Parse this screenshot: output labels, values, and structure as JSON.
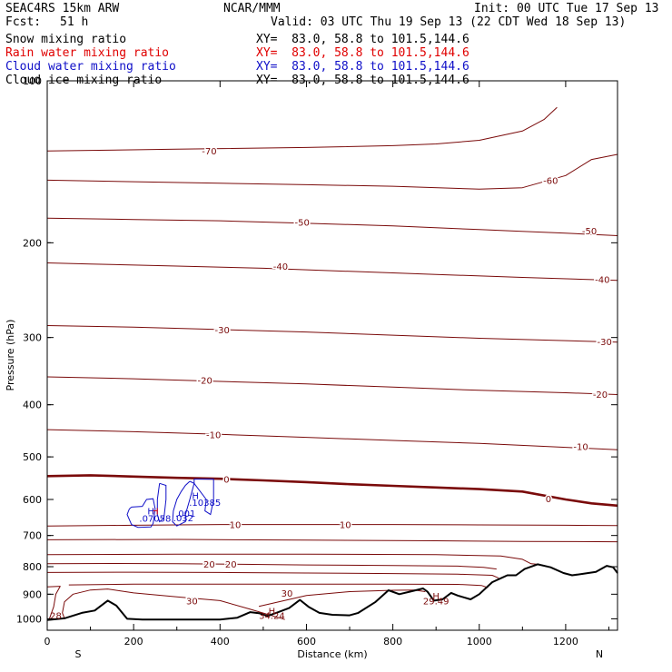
{
  "header": {
    "model": "SEAC4RS 15km ARW",
    "org": "NCAR/MMM",
    "init": "Init: 00 UTC Tue 17 Sep 13",
    "fcst_label": "Fcst:",
    "fcst_value": "51 h",
    "valid": "Valid: 03 UTC Thu 19 Sep 13 (22 CDT Wed 18 Sep 13)"
  },
  "fields": [
    {
      "name": "Snow mixing ratio",
      "xy": "XY=  83.0, 58.8 to 101.5,144.6",
      "color": "#000000"
    },
    {
      "name": "Rain water mixing ratio",
      "xy": "XY=  83.0, 58.8 to 101.5,144.6",
      "color": "#e00000"
    },
    {
      "name": "Cloud water mixing ratio",
      "xy": "XY=  83.0, 58.8 to 101.5,144.6",
      "color": "#1010c8"
    },
    {
      "name": "Cloud ice mixing ratio",
      "xy": "XY=  83.0, 58.8 to 101.5,144.6",
      "color": "#000000"
    }
  ],
  "chart_data": {
    "type": "line",
    "subtype": "vertical cross-section contour plot",
    "xlabel": "Distance (km)",
    "ylabel": "Pressure (hPa)",
    "xlim": [
      0,
      1320
    ],
    "ylim": [
      1050,
      100
    ],
    "y_scale": "log",
    "x_ticks": [
      0,
      200,
      400,
      600,
      800,
      1000,
      1200
    ],
    "y_ticks": [
      100,
      200,
      300,
      400,
      500,
      600,
      700,
      800,
      900,
      1000
    ],
    "x_tick_labels": [
      "0",
      "200",
      "400",
      "600",
      "800",
      "1000",
      "1200"
    ],
    "y_tick_labels": [
      "100",
      "200",
      "300",
      "400",
      "500",
      "600",
      "700",
      "800",
      "900",
      "1000"
    ],
    "end_labels": {
      "left": "S",
      "right": "N"
    },
    "colors": {
      "isotherm": "#7a0a0a",
      "terrain": "#000000",
      "cloud": "#1010c8",
      "extremum": "#7a0a0a"
    },
    "terrain": [
      [
        0,
        1005
      ],
      [
        40,
        998
      ],
      [
        80,
        975
      ],
      [
        110,
        965
      ],
      [
        140,
        925
      ],
      [
        160,
        945
      ],
      [
        185,
        1000
      ],
      [
        220,
        1003
      ],
      [
        300,
        1003
      ],
      [
        400,
        1003
      ],
      [
        440,
        995
      ],
      [
        470,
        972
      ],
      [
        490,
        976
      ],
      [
        510,
        988
      ],
      [
        535,
        972
      ],
      [
        560,
        955
      ],
      [
        585,
        922
      ],
      [
        605,
        950
      ],
      [
        630,
        975
      ],
      [
        660,
        983
      ],
      [
        700,
        985
      ],
      [
        720,
        975
      ],
      [
        760,
        930
      ],
      [
        790,
        885
      ],
      [
        815,
        900
      ],
      [
        840,
        890
      ],
      [
        870,
        878
      ],
      [
        880,
        890
      ],
      [
        895,
        925
      ],
      [
        915,
        920
      ],
      [
        935,
        895
      ],
      [
        950,
        905
      ],
      [
        980,
        920
      ],
      [
        1000,
        900
      ],
      [
        1030,
        855
      ],
      [
        1065,
        830
      ],
      [
        1085,
        830
      ],
      [
        1105,
        808
      ],
      [
        1135,
        792
      ],
      [
        1165,
        802
      ],
      [
        1195,
        822
      ],
      [
        1215,
        830
      ],
      [
        1240,
        825
      ],
      [
        1270,
        818
      ],
      [
        1295,
        797
      ],
      [
        1310,
        802
      ],
      [
        1320,
        822
      ]
    ],
    "series": [
      {
        "label": "-70",
        "values": [
          [
            0,
            135
          ],
          [
            300,
            134
          ],
          [
            600,
            133
          ],
          [
            800,
            132
          ],
          [
            900,
            131
          ],
          [
            1000,
            129
          ],
          [
            1100,
            124
          ],
          [
            1150,
            118
          ],
          [
            1180,
            112
          ]
        ]
      },
      {
        "label": "-60",
        "values": [
          [
            0,
            153
          ],
          [
            200,
            154
          ],
          [
            400,
            155
          ],
          [
            600,
            156
          ],
          [
            800,
            157
          ],
          [
            1000,
            159
          ],
          [
            1100,
            158
          ],
          [
            1200,
            150
          ],
          [
            1260,
            140
          ],
          [
            1320,
            137
          ]
        ]
      },
      {
        "label": "-50",
        "values": [
          [
            0,
            180
          ],
          [
            200,
            181
          ],
          [
            400,
            182
          ],
          [
            600,
            184
          ],
          [
            800,
            186
          ],
          [
            1000,
            189
          ],
          [
            1200,
            192
          ],
          [
            1320,
            194
          ]
        ]
      },
      {
        "label": "-40",
        "values": [
          [
            0,
            218
          ],
          [
            100,
            219
          ],
          [
            300,
            221
          ],
          [
            500,
            223
          ],
          [
            700,
            226
          ],
          [
            900,
            229
          ],
          [
            1100,
            232
          ],
          [
            1320,
            235
          ]
        ]
      },
      {
        "label": "-30",
        "values": [
          [
            0,
            285
          ],
          [
            200,
            287
          ],
          [
            400,
            290
          ],
          [
            600,
            293
          ],
          [
            800,
            297
          ],
          [
            1000,
            301
          ],
          [
            1200,
            304
          ],
          [
            1320,
            306
          ]
        ]
      },
      {
        "label": "-20",
        "values": [
          [
            0,
            355
          ],
          [
            200,
            358
          ],
          [
            400,
            362
          ],
          [
            600,
            366
          ],
          [
            800,
            371
          ],
          [
            1000,
            376
          ],
          [
            1200,
            380
          ],
          [
            1320,
            383
          ]
        ]
      },
      {
        "label": "-10",
        "values": [
          [
            0,
            445
          ],
          [
            200,
            449
          ],
          [
            400,
            454
          ],
          [
            600,
            460
          ],
          [
            800,
            466
          ],
          [
            1000,
            472
          ],
          [
            1200,
            480
          ],
          [
            1320,
            485
          ]
        ]
      },
      {
        "label": "0",
        "values": [
          [
            0,
            543
          ],
          [
            100,
            541
          ],
          [
            200,
            544
          ],
          [
            300,
            547
          ],
          [
            400,
            549
          ],
          [
            500,
            553
          ],
          [
            600,
            557
          ],
          [
            700,
            562
          ],
          [
            800,
            566
          ],
          [
            900,
            570
          ],
          [
            1000,
            574
          ],
          [
            1100,
            580
          ],
          [
            1200,
            600
          ],
          [
            1260,
            610
          ],
          [
            1320,
            616
          ]
        ]
      },
      {
        "label": "10",
        "values": [
          [
            0,
            672
          ],
          [
            200,
            670
          ],
          [
            400,
            668
          ],
          [
            600,
            668
          ],
          [
            800,
            668
          ],
          [
            1000,
            669
          ],
          [
            1200,
            670
          ],
          [
            1320,
            671
          ]
        ]
      },
      {
        "label": "",
        "values": [
          [
            0,
            713
          ],
          [
            300,
            712
          ],
          [
            600,
            714
          ],
          [
            900,
            716
          ],
          [
            1100,
            718
          ],
          [
            1320,
            719
          ]
        ]
      },
      {
        "label": "",
        "values": [
          [
            0,
            760
          ],
          [
            300,
            758
          ],
          [
            600,
            758
          ],
          [
            900,
            760
          ],
          [
            1050,
            764
          ],
          [
            1100,
            775
          ],
          [
            1120,
            790
          ],
          [
            1135,
            792
          ]
        ]
      },
      {
        "label": "20",
        "values": [
          [
            0,
            790
          ],
          [
            150,
            789
          ],
          [
            300,
            790
          ],
          [
            450,
            792
          ],
          [
            600,
            794
          ],
          [
            800,
            796
          ],
          [
            950,
            798
          ],
          [
            1010,
            802
          ],
          [
            1040,
            808
          ]
        ]
      },
      {
        "label": "",
        "values": [
          [
            0,
            820
          ],
          [
            200,
            819
          ],
          [
            400,
            820
          ],
          [
            600,
            822
          ],
          [
            800,
            824
          ],
          [
            950,
            826
          ],
          [
            1030,
            830
          ],
          [
            1045,
            840
          ]
        ]
      },
      {
        "label": "",
        "values": [
          [
            50,
            865
          ],
          [
            200,
            862
          ],
          [
            400,
            862
          ],
          [
            600,
            862
          ],
          [
            800,
            862
          ],
          [
            950,
            863
          ],
          [
            1005,
            867
          ],
          [
            1020,
            875
          ]
        ]
      },
      {
        "label": "30",
        "values": [
          [
            550,
            1003
          ],
          [
            470,
            960
          ],
          [
            400,
            925
          ],
          [
            300,
            910
          ],
          [
            200,
            895
          ],
          [
            140,
            880
          ],
          [
            100,
            884
          ],
          [
            60,
            900
          ],
          [
            40,
            930
          ],
          [
            35,
            975
          ],
          [
            40,
            998
          ]
        ]
      },
      {
        "label": "30",
        "values": [
          [
            490,
            948
          ],
          [
            600,
            905
          ],
          [
            700,
            890
          ],
          [
            800,
            885
          ],
          [
            850,
            884
          ],
          [
            875,
            890
          ]
        ]
      },
      {
        "label": "",
        "values": [
          [
            0,
            872
          ],
          [
            30,
            870
          ],
          [
            20,
            900
          ],
          [
            15,
            950
          ],
          [
            5,
            1000
          ]
        ]
      }
    ],
    "cloud_regions": [
      {
        "type": "cloud water contour",
        "label": ".001",
        "values": [
          [
            195,
            620
          ],
          [
            220,
            618
          ],
          [
            230,
            600
          ],
          [
            245,
            598
          ],
          [
            250,
            625
          ],
          [
            245,
            665
          ],
          [
            240,
            675
          ],
          [
            210,
            676
          ],
          [
            195,
            668
          ],
          [
            185,
            640
          ],
          [
            190,
            625
          ],
          [
            195,
            620
          ]
        ]
      },
      {
        "type": "cloud water contour",
        "label": "",
        "values": [
          [
            260,
            560
          ],
          [
            275,
            565
          ],
          [
            275,
            600
          ],
          [
            270,
            650
          ],
          [
            260,
            660
          ],
          [
            255,
            640
          ],
          [
            255,
            600
          ],
          [
            260,
            560
          ]
        ]
      },
      {
        "type": "cloud water contour",
        "label": "",
        "values": [
          [
            330,
            555
          ],
          [
            340,
            560
          ],
          [
            330,
            600
          ],
          [
            320,
            640
          ],
          [
            320,
            660
          ],
          [
            300,
            672
          ],
          [
            290,
            660
          ],
          [
            292,
            630
          ],
          [
            300,
            600
          ],
          [
            310,
            580
          ],
          [
            320,
            565
          ],
          [
            330,
            555
          ]
        ]
      },
      {
        "type": "cloud water contour",
        "label": "",
        "values": [
          [
            340,
            550
          ],
          [
            385,
            550
          ],
          [
            385,
            600
          ],
          [
            378,
            640
          ],
          [
            365,
            630
          ],
          [
            368,
            600
          ],
          [
            340,
            560
          ],
          [
            340,
            550
          ]
        ]
      }
    ],
    "annotations": [
      {
        "text": "H",
        "x": 250,
        "y": 630,
        "color": "#e00000"
      },
      {
        "text": "H",
        "x": 240,
        "y": 630,
        "color": "#1010c8"
      },
      {
        "text": ".07058",
        "x": 250,
        "y": 650,
        "color": "#1010c8"
      },
      {
        "text": ".032",
        "x": 315,
        "y": 648,
        "color": "#1010c8"
      },
      {
        "text": ".001",
        "x": 320,
        "y": 636,
        "color": "#1010c8"
      },
      {
        "text": "H",
        "x": 343,
        "y": 590,
        "color": "#1010c8"
      },
      {
        "text": ".10385",
        "x": 365,
        "y": 607,
        "color": "#1010c8"
      },
      {
        "text": "H",
        "x": 520,
        "y": 965,
        "color": "#7a0a0a"
      },
      {
        "text": "34.24",
        "x": 520,
        "y": 985,
        "color": "#7a0a0a"
      },
      {
        "text": "H",
        "x": 900,
        "y": 905,
        "color": "#7a0a0a"
      },
      {
        "text": "29.49",
        "x": 900,
        "y": 926,
        "color": "#7a0a0a"
      },
      {
        "text": "28",
        "x": 20,
        "y": 985,
        "color": "#7a0a0a"
      }
    ],
    "contour_labels": [
      {
        "text": "-70",
        "x": 375,
        "y": 135
      },
      {
        "text": "-60",
        "x": 1165,
        "y": 153
      },
      {
        "text": "-50",
        "x": 590,
        "y": 183
      },
      {
        "text": "-50",
        "x": 1255,
        "y": 190
      },
      {
        "text": "-40",
        "x": 540,
        "y": 221
      },
      {
        "text": "-40",
        "x": 1285,
        "y": 234
      },
      {
        "text": "-30",
        "x": 405,
        "y": 290
      },
      {
        "text": "-30",
        "x": 1290,
        "y": 305
      },
      {
        "text": "-20",
        "x": 365,
        "y": 360
      },
      {
        "text": "-20",
        "x": 1280,
        "y": 382
      },
      {
        "text": "-10",
        "x": 385,
        "y": 454
      },
      {
        "text": "-10",
        "x": 1235,
        "y": 478
      },
      {
        "text": "0",
        "x": 415,
        "y": 550
      },
      {
        "text": "0",
        "x": 1160,
        "y": 598
      },
      {
        "text": "10",
        "x": 435,
        "y": 668
      },
      {
        "text": "10",
        "x": 690,
        "y": 668
      },
      {
        "text": "20",
        "x": 375,
        "y": 791
      },
      {
        "text": "20",
        "x": 425,
        "y": 791
      },
      {
        "text": "30",
        "x": 335,
        "y": 925
      },
      {
        "text": "30",
        "x": 555,
        "y": 895
      }
    ]
  }
}
